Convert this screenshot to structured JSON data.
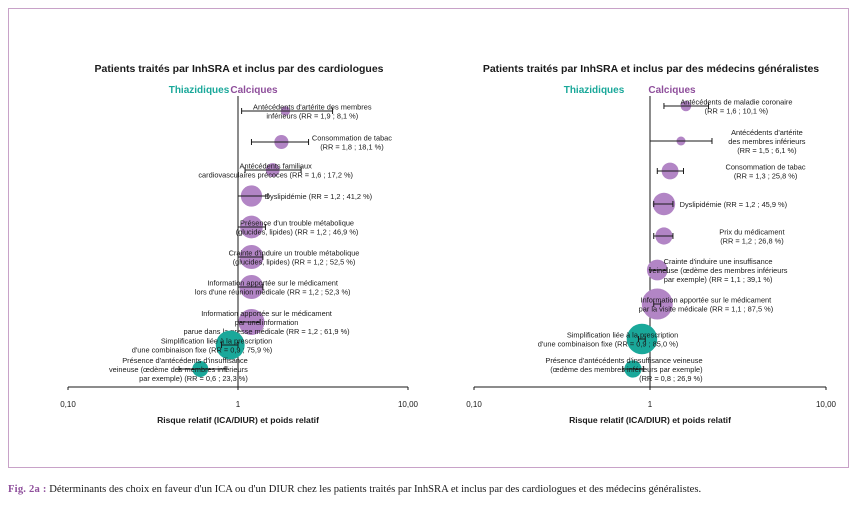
{
  "colors": {
    "thiazide": "#1aa89a",
    "calcium": "#b285c5",
    "frame": "#c8a2c8",
    "axis": "#1a1a1a"
  },
  "caption": {
    "label": "Fig. 2a :",
    "text": "Déterminants des choix en faveur d'un ICA ou d'un DIUR chez les patients traités par InhSRA et inclus par des cardiologues et des médecins généralistes."
  },
  "chart_data": [
    {
      "type": "forest",
      "title": "Patients traités par InhSRA et inclus par des cardiologues",
      "group_left": "Thiazidiques",
      "group_right": "Calciques",
      "xlabel": "Risque relatif (ICA/DIUR) et poids relatif",
      "x_scale": "log",
      "xlim": [
        0.1,
        10
      ],
      "ticks": [
        "0,10",
        "1",
        "10,00"
      ],
      "rows": [
        {
          "lines": [
            "Antécédents d'artérite des membres",
            "inférieurs (RR = 1,9 ; 8,1 %)"
          ],
          "rr": 1.9,
          "ci": [
            1.05,
            3.6
          ],
          "weight": 8.1
        },
        {
          "lines": [
            "Consommation de tabac",
            "(RR = 1,8 ; 18,1 %)"
          ],
          "rr": 1.8,
          "ci": [
            1.2,
            2.6
          ],
          "weight": 18.1
        },
        {
          "lines": [
            "Antécédents familiaux",
            "cardiovasculaires précoces (RR = 1,6 ; 17,2 %)"
          ],
          "rr": 1.6,
          "ci": [
            1.1,
            2.35
          ],
          "weight": 17.2
        },
        {
          "lines": [
            "Dyslipidémie (RR = 1,2 ; 41,2 %)"
          ],
          "rr": 1.2,
          "ci": [
            1.0,
            1.5
          ],
          "weight": 41.2
        },
        {
          "lines": [
            "Présence d'un trouble métabolique",
            "(glucides, lipides) (RR = 1,2 ; 46,9 %)"
          ],
          "rr": 1.2,
          "ci": [
            1.0,
            1.45
          ],
          "weight": 46.9
        },
        {
          "lines": [
            "Crainte d'induire un trouble métabolique",
            "(glucides, lipides) (RR = 1,2 ; 52,5 %)"
          ],
          "rr": 1.2,
          "ci": [
            1.0,
            1.4
          ],
          "weight": 52.5
        },
        {
          "lines": [
            "Information apportée sur le médicament",
            "lors d'une réunion médicale (RR = 1,2 ; 52,3 %)"
          ],
          "rr": 1.2,
          "ci": [
            1.0,
            1.4
          ],
          "weight": 52.3
        },
        {
          "lines": [
            "Information apportée sur le médicament",
            "par une information",
            "parue dans la presse médicale (RR = 1,2 ; 61,9 %)"
          ],
          "rr": 1.2,
          "ci": [
            1.0,
            1.35
          ],
          "weight": 61.9
        },
        {
          "lines": [
            "Simplification liée à la prescription",
            "d'une combinaison fixe (RR = 0,9 ; 75,9 %)"
          ],
          "rr": 0.9,
          "ci": [
            0.8,
            1.0
          ],
          "weight": 75.9
        },
        {
          "lines": [
            "Présence d'antécédents d'insuffisance",
            "veineuse (œdème des membres inférieurs",
            "par exemple) (RR = 0,6 ; 23,3 %)"
          ],
          "rr": 0.6,
          "ci": [
            0.45,
            0.85
          ],
          "weight": 23.3
        }
      ]
    },
    {
      "type": "forest",
      "title": "Patients traités par  InhSRA et inclus par des médecins généralistes",
      "group_left": "Thiazidiques",
      "group_right": "Calciques",
      "xlabel": "Risque relatif (ICA/DIUR) et poids relatif",
      "x_scale": "log",
      "xlim": [
        0.1,
        10
      ],
      "ticks": [
        "0,10",
        "1",
        "10,00"
      ],
      "rows": [
        {
          "lines": [
            "Antécédents de maladie coronaire",
            "(RR = 1,6 ; 10,1 %)"
          ],
          "rr": 1.6,
          "ci": [
            1.2,
            2.15
          ],
          "weight": 10.1
        },
        {
          "lines": [
            "Antécédents d'artérite",
            "des membres inférieurs",
            "(RR = 1,5 ; 6,1 %)"
          ],
          "rr": 1.5,
          "ci": [
            1.0,
            2.25
          ],
          "weight": 6.1
        },
        {
          "lines": [
            "Consommation de tabac",
            "(RR = 1,3 ; 25,8 %)"
          ],
          "rr": 1.3,
          "ci": [
            1.1,
            1.55
          ],
          "weight": 25.8
        },
        {
          "lines": [
            "Dyslipidémie (RR = 1,2 ; 45,9  %)"
          ],
          "rr": 1.2,
          "ci": [
            1.05,
            1.35
          ],
          "weight": 45.9
        },
        {
          "lines": [
            "Prix du médicament",
            "(RR = 1,2 ; 26,8  %)"
          ],
          "rr": 1.2,
          "ci": [
            1.05,
            1.35
          ],
          "weight": 26.8
        },
        {
          "lines": [
            "Crainte d'induire une insuffisance",
            "veineuse (œdème des membres inférieurs",
            "par exemple) (RR = 1,1 ; 39,1 %)"
          ],
          "rr": 1.1,
          "ci": [
            1.0,
            1.25
          ],
          "weight": 39.1
        },
        {
          "lines": [
            "Information apportée sur le médicament",
            "par la visite médicale (RR = 1,1 ; 87,5 %)"
          ],
          "rr": 1.1,
          "ci": [
            1.05,
            1.15
          ],
          "weight": 87.5
        },
        {
          "lines": [
            "Simplification liée à la prescription",
            "d'une combinaison fixe (RR = 0,9 ; 85,0 %)"
          ],
          "rr": 0.9,
          "ci": [
            0.86,
            0.94
          ],
          "weight": 85.0
        },
        {
          "lines": [
            "Présence d'antécédents d'insuffisance veineuse",
            "(œdème des membres inférieurs par exemple)",
            "(RR = 0,8 ; 26,9 %)"
          ],
          "rr": 0.8,
          "ci": [
            0.7,
            0.92
          ],
          "weight": 26.9
        }
      ]
    }
  ]
}
